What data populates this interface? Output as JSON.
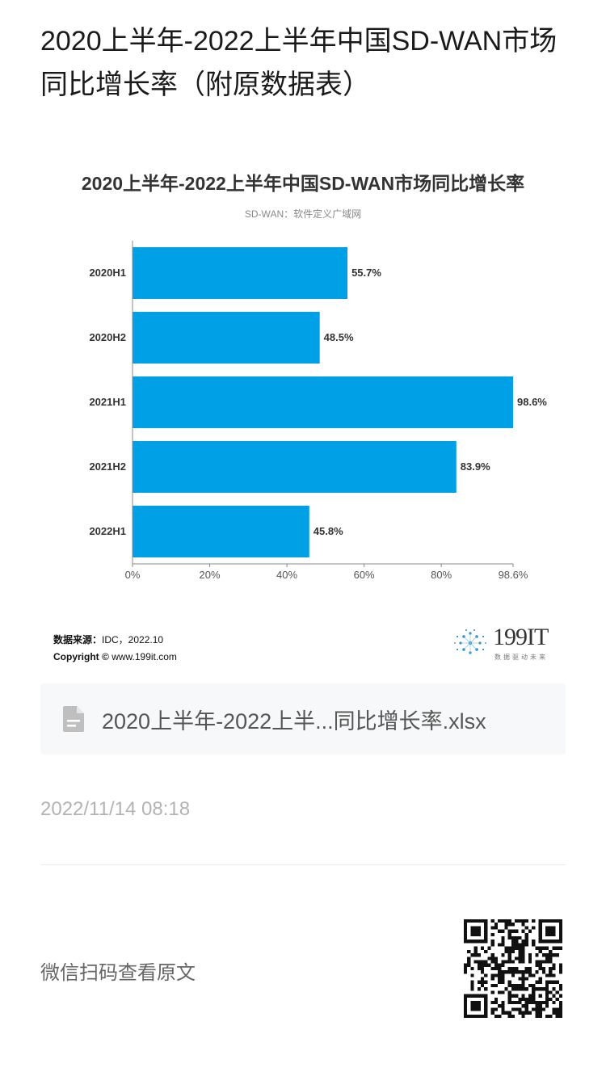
{
  "article": {
    "title": "2020上半年-2022上半年中国SD-WAN市场同比增长率（附原数据表）"
  },
  "chart_data": {
    "type": "bar",
    "orientation": "horizontal",
    "title": "2020上半年-2022上半年中国SD-WAN市场同比增长率",
    "subtitle": "SD-WAN：软件定义广域网",
    "categories": [
      "2020H1",
      "2020H2",
      "2021H1",
      "2021H2",
      "2022H1"
    ],
    "values": [
      55.7,
      48.5,
      98.6,
      83.9,
      45.8
    ],
    "value_labels": [
      "55.7%",
      "48.5%",
      "98.6%",
      "83.9%",
      "45.8%"
    ],
    "x_ticks": [
      "0%",
      "20%",
      "40%",
      "60%",
      "80%",
      "98.6%"
    ],
    "x_tick_values": [
      0,
      20,
      40,
      60,
      80,
      98.6
    ],
    "xlim": [
      0,
      98.6
    ],
    "bar_color": "#00a0e6",
    "grid": false
  },
  "chart_footer": {
    "source_label": "数据来源：",
    "source_value": "IDC，2022.10",
    "copyright_label": "Copyright ©",
    "copyright_value": "www.199it.com",
    "logo_text": "199IT",
    "logo_slogan": "数据驱动未来"
  },
  "attachment": {
    "icon": "document-icon",
    "file_name": "2020上半年-2022上半...同比增长率.xlsx"
  },
  "meta": {
    "timestamp": "2022/11/14 08:18"
  },
  "qr": {
    "label": "微信扫码查看原文",
    "icon": "qr-code"
  }
}
